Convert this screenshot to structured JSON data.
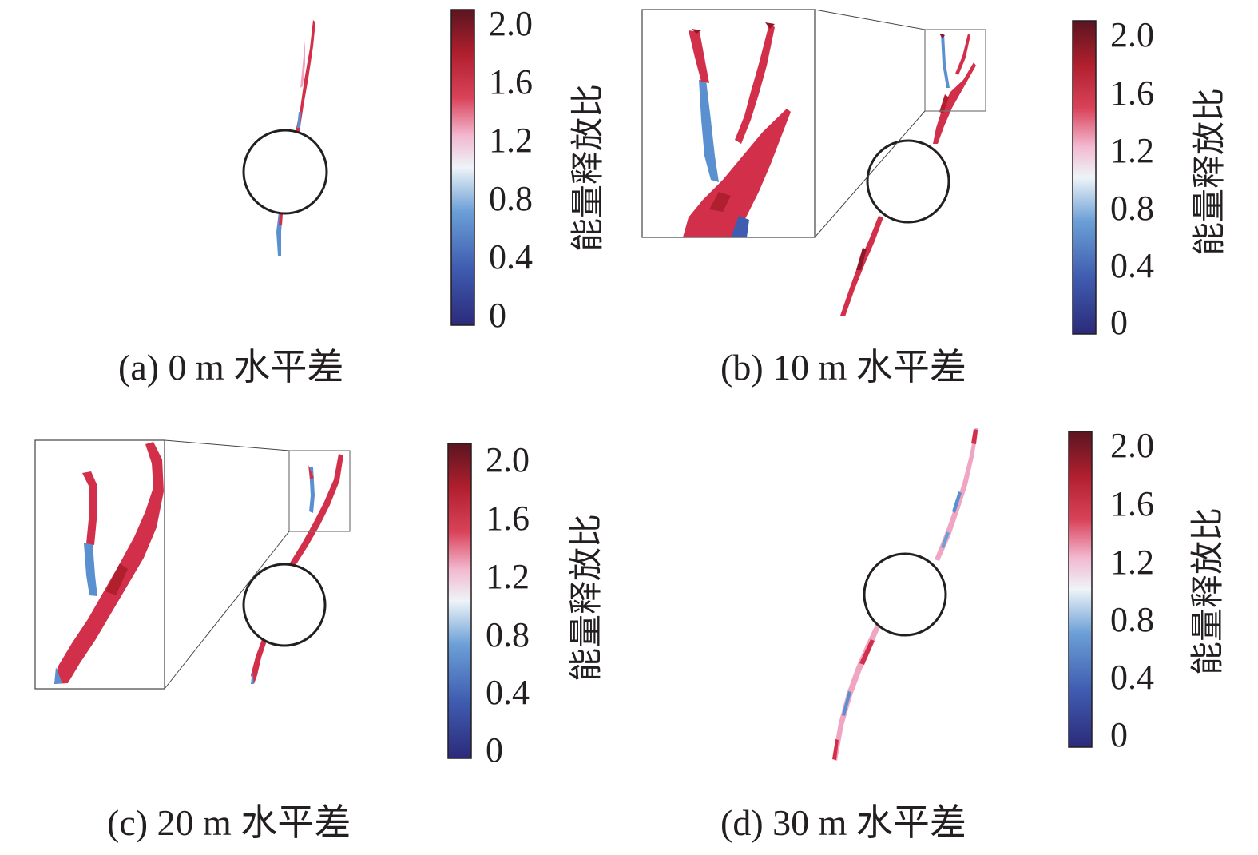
{
  "colorbar": {
    "title": "能量释放比",
    "ticks": [
      "2.0",
      "1.6",
      "1.2",
      "0.8",
      "0.4",
      "0"
    ],
    "stops": [
      "#2c2a7a",
      "#3f5cb0",
      "#6b9fd6",
      "#e9f1f7",
      "#f2b8d0",
      "#d9435a",
      "#b01f2e",
      "#5a1520"
    ]
  },
  "panels": [
    {
      "caption": "(a) 0 m 水平差"
    },
    {
      "caption": "(b) 10 m 水平差"
    },
    {
      "caption": "(c) 20 m 水平差"
    },
    {
      "caption": "(d) 30 m 水平差"
    }
  ],
  "colors": {
    "crack_red": "#d2304a",
    "crack_dark": "#8e1728",
    "crack_blue": "#5a8fd0",
    "crack_pink": "#f0a6c2",
    "ink": "#231f20"
  }
}
